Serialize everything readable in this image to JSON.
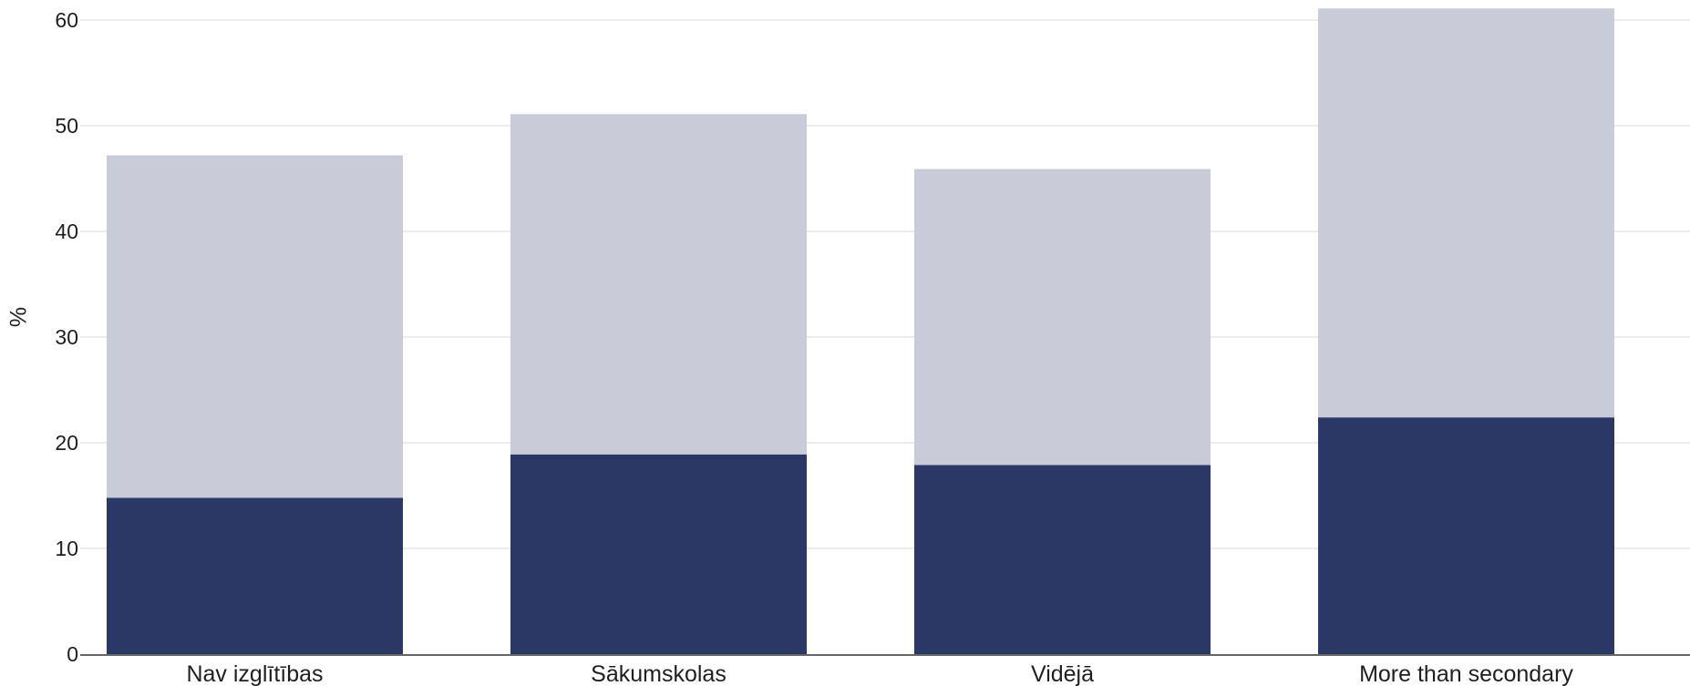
{
  "chart_data": {
    "type": "bar",
    "stacked": true,
    "categories": [
      "Nav izglītības",
      "Sākumskolas",
      "Vidējā",
      "More than secondary"
    ],
    "series": [
      {
        "values": [
          14.8,
          18.9,
          17.9,
          22.4
        ],
        "color": "#2b3764"
      },
      {
        "values": [
          32.4,
          32.2,
          28.0,
          38.7
        ],
        "color": "#c9cbd8"
      }
    ],
    "totals": [
      47.2,
      51.1,
      45.9,
      61.1
    ],
    "xlabel": "",
    "ylabel": "%",
    "ylim": [
      0,
      60
    ],
    "yticks": [
      0,
      10,
      20,
      30,
      40,
      50,
      60
    ],
    "grid": true,
    "legend": "none"
  }
}
